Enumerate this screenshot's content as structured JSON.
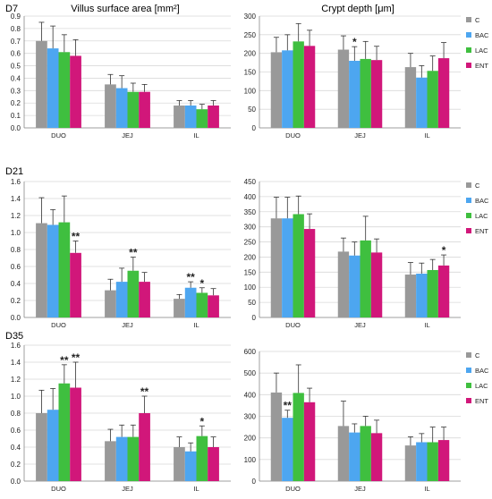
{
  "figure": {
    "columns": [
      {
        "title": "Villus surface area [mm²]"
      },
      {
        "title": "Crypt depth [μm]"
      }
    ],
    "rows": [
      {
        "label": "D7"
      },
      {
        "label": "D21"
      },
      {
        "label": "D35"
      }
    ],
    "legend": [
      {
        "name": "C",
        "color": "#999999"
      },
      {
        "name": "BAC",
        "color": "#4da6f0"
      },
      {
        "name": "LAC",
        "color": "#3fbf3f"
      },
      {
        "name": "ENT",
        "color": "#d1177a"
      }
    ]
  },
  "chart_data": [
    {
      "type": "bar",
      "panel": "D7-villus",
      "categories": [
        "DUO",
        "JEJ",
        "IL"
      ],
      "ylim": [
        0,
        0.9
      ],
      "yticks": [
        0,
        0.1,
        0.2,
        0.3,
        0.4,
        0.5,
        0.6,
        0.7,
        0.8,
        0.9
      ],
      "decimals": 1,
      "grid": true,
      "series": [
        {
          "name": "C",
          "values": [
            0.7,
            0.35,
            0.18
          ],
          "errors": [
            0.15,
            0.08,
            0.04
          ]
        },
        {
          "name": "BAC",
          "values": [
            0.64,
            0.32,
            0.18
          ],
          "errors": [
            0.18,
            0.1,
            0.04
          ]
        },
        {
          "name": "LAC",
          "values": [
            0.61,
            0.29,
            0.15
          ],
          "errors": [
            0.14,
            0.07,
            0.04
          ]
        },
        {
          "name": "ENT",
          "values": [
            0.58,
            0.29,
            0.18
          ],
          "errors": [
            0.13,
            0.06,
            0.04
          ]
        }
      ],
      "annotations": []
    },
    {
      "type": "bar",
      "panel": "D7-crypt",
      "categories": [
        "DUO",
        "JEJ",
        "IL"
      ],
      "ylim": [
        0,
        300
      ],
      "yticks": [
        0,
        50,
        100,
        150,
        200,
        250,
        300
      ],
      "decimals": 0,
      "grid": true,
      "series": [
        {
          "name": "C",
          "values": [
            203,
            210,
            163
          ],
          "errors": [
            40,
            37,
            37
          ]
        },
        {
          "name": "BAC",
          "values": [
            208,
            180,
            135
          ],
          "errors": [
            42,
            38,
            32
          ]
        },
        {
          "name": "LAC",
          "values": [
            232,
            185,
            153
          ],
          "errors": [
            48,
            47,
            40
          ]
        },
        {
          "name": "ENT",
          "values": [
            220,
            182,
            187
          ],
          "errors": [
            42,
            37,
            42
          ]
        }
      ],
      "annotations": [
        {
          "category": "JEJ",
          "series": "BAC",
          "text": "*"
        }
      ]
    },
    {
      "type": "bar",
      "panel": "D21-villus",
      "categories": [
        "DUO",
        "JEJ",
        "IL"
      ],
      "ylim": [
        0,
        1.6
      ],
      "yticks": [
        0,
        0.2,
        0.4,
        0.6,
        0.8,
        1.0,
        1.2,
        1.4,
        1.6
      ],
      "decimals": 1,
      "grid": true,
      "series": [
        {
          "name": "C",
          "values": [
            1.11,
            0.32,
            0.22
          ],
          "errors": [
            0.3,
            0.13,
            0.05
          ]
        },
        {
          "name": "BAC",
          "values": [
            1.09,
            0.42,
            0.35
          ],
          "errors": [
            0.18,
            0.16,
            0.07
          ]
        },
        {
          "name": "LAC",
          "values": [
            1.12,
            0.55,
            0.29
          ],
          "errors": [
            0.31,
            0.16,
            0.06
          ]
        },
        {
          "name": "ENT",
          "values": [
            0.76,
            0.42,
            0.26
          ],
          "errors": [
            0.14,
            0.11,
            0.08
          ]
        }
      ],
      "annotations": [
        {
          "category": "DUO",
          "series": "ENT",
          "text": "**"
        },
        {
          "category": "JEJ",
          "series": "LAC",
          "text": "**"
        },
        {
          "category": "IL",
          "series": "BAC",
          "text": "**"
        },
        {
          "category": "IL",
          "series": "LAC",
          "text": "*"
        }
      ]
    },
    {
      "type": "bar",
      "panel": "D21-crypt",
      "categories": [
        "DUO",
        "JEJ",
        "IL"
      ],
      "ylim": [
        0,
        450
      ],
      "yticks": [
        0,
        50,
        100,
        150,
        200,
        250,
        300,
        350,
        400,
        450
      ],
      "decimals": 0,
      "grid": true,
      "series": [
        {
          "name": "C",
          "values": [
            328,
            218,
            142
          ],
          "errors": [
            70,
            45,
            40
          ]
        },
        {
          "name": "BAC",
          "values": [
            328,
            205,
            145
          ],
          "errors": [
            70,
            45,
            35
          ]
        },
        {
          "name": "LAC",
          "values": [
            342,
            255,
            157
          ],
          "errors": [
            60,
            80,
            35
          ]
        },
        {
          "name": "ENT",
          "values": [
            293,
            215,
            172
          ],
          "errors": [
            50,
            45,
            35
          ]
        }
      ],
      "annotations": [
        {
          "category": "IL",
          "series": "ENT",
          "text": "*"
        }
      ]
    },
    {
      "type": "bar",
      "panel": "D35-villus",
      "categories": [
        "DUO",
        "JEJ",
        "IL"
      ],
      "ylim": [
        0,
        1.6
      ],
      "yticks": [
        0,
        0.2,
        0.4,
        0.6,
        0.8,
        1.0,
        1.2,
        1.4,
        1.6
      ],
      "decimals": 1,
      "grid": true,
      "series": [
        {
          "name": "C",
          "values": [
            0.8,
            0.47,
            0.4
          ],
          "errors": [
            0.27,
            0.14,
            0.12
          ]
        },
        {
          "name": "BAC",
          "values": [
            0.84,
            0.52,
            0.35
          ],
          "errors": [
            0.25,
            0.14,
            0.1
          ]
        },
        {
          "name": "LAC",
          "values": [
            1.15,
            0.52,
            0.53
          ],
          "errors": [
            0.22,
            0.14,
            0.12
          ]
        },
        {
          "name": "ENT",
          "values": [
            1.1,
            0.8,
            0.4
          ],
          "errors": [
            0.3,
            0.2,
            0.12
          ]
        }
      ],
      "annotations": [
        {
          "category": "DUO",
          "series": "LAC",
          "text": "**"
        },
        {
          "category": "DUO",
          "series": "ENT",
          "text": "**"
        },
        {
          "category": "JEJ",
          "series": "ENT",
          "text": "**"
        },
        {
          "category": "IL",
          "series": "LAC",
          "text": "*"
        }
      ]
    },
    {
      "type": "bar",
      "panel": "D35-crypt",
      "categories": [
        "DUO",
        "JEJ",
        "IL"
      ],
      "ylim": [
        0,
        600
      ],
      "yticks": [
        0,
        100,
        200,
        300,
        400,
        500,
        600
      ],
      "decimals": 0,
      "grid": true,
      "series": [
        {
          "name": "C",
          "values": [
            410,
            255,
            165
          ],
          "errors": [
            90,
            115,
            40
          ]
        },
        {
          "name": "BAC",
          "values": [
            293,
            225,
            180
          ],
          "errors": [
            35,
            40,
            40
          ]
        },
        {
          "name": "LAC",
          "values": [
            408,
            255,
            180
          ],
          "errors": [
            130,
            45,
            70
          ]
        },
        {
          "name": "ENT",
          "values": [
            365,
            222,
            190
          ],
          "errors": [
            65,
            60,
            60
          ]
        }
      ],
      "annotations": [
        {
          "category": "DUO",
          "series": "BAC",
          "text": "**"
        }
      ]
    }
  ]
}
